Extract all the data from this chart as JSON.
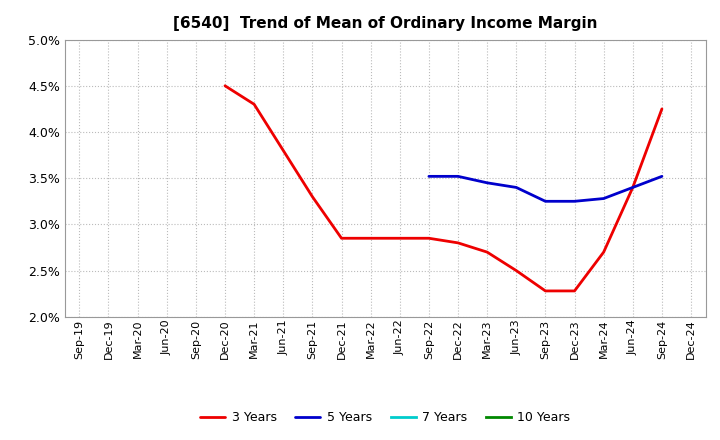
{
  "title": "[6540]  Trend of Mean of Ordinary Income Margin",
  "x_labels": [
    "Sep-19",
    "Dec-19",
    "Mar-20",
    "Jun-20",
    "Sep-20",
    "Dec-20",
    "Mar-21",
    "Jun-21",
    "Sep-21",
    "Dec-21",
    "Mar-22",
    "Jun-22",
    "Sep-22",
    "Dec-22",
    "Mar-23",
    "Jun-23",
    "Sep-23",
    "Dec-23",
    "Mar-24",
    "Jun-24",
    "Sep-24",
    "Dec-24"
  ],
  "ylim": [
    0.02,
    0.05
  ],
  "yticks": [
    0.02,
    0.025,
    0.03,
    0.035,
    0.04,
    0.045,
    0.05
  ],
  "series_3y": {
    "label": "3 Years",
    "color": "#EE0000",
    "x_indices": [
      5,
      6,
      7,
      8,
      9,
      10,
      11,
      12,
      13,
      14,
      15,
      16,
      17,
      18,
      19,
      20
    ],
    "values": [
      0.045,
      0.043,
      0.038,
      0.033,
      0.0285,
      0.0285,
      0.0285,
      0.0285,
      0.028,
      0.027,
      0.025,
      0.0228,
      0.0228,
      0.027,
      0.034,
      0.0425
    ]
  },
  "series_5y": {
    "label": "5 Years",
    "color": "#0000CC",
    "x_indices": [
      12,
      13,
      14,
      15,
      16,
      17,
      18,
      19,
      20
    ],
    "values": [
      0.0352,
      0.0352,
      0.0345,
      0.034,
      0.0325,
      0.0325,
      0.0328,
      0.034,
      0.0352
    ]
  },
  "series_7y": {
    "label": "7 Years",
    "color": "#00CCCC",
    "x_indices": [],
    "values": []
  },
  "series_10y": {
    "label": "10 Years",
    "color": "#008800",
    "x_indices": [],
    "values": []
  },
  "background_color": "#ffffff",
  "plot_bg_color": "#ffffff",
  "grid_color": "#bbbbbb",
  "title_fontsize": 11,
  "title_fontweight": "bold",
  "tick_fontsize": 8,
  "ytick_fontsize": 9
}
